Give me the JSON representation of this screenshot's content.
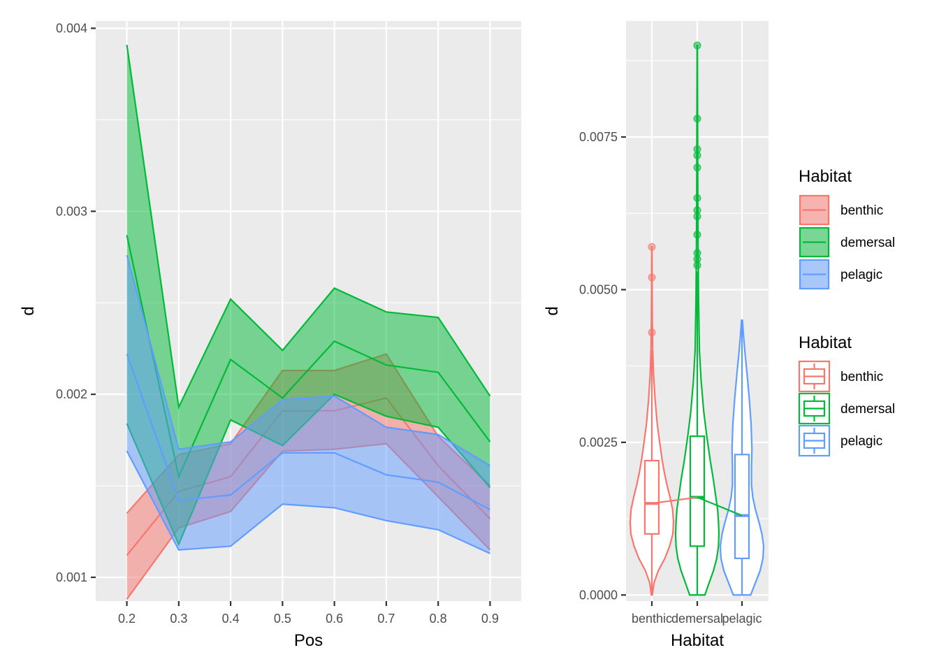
{
  "chart_data": [
    {
      "type": "area",
      "xlabel": "Pos",
      "ylabel": "d",
      "x": [
        0.2,
        0.3,
        0.4,
        0.5,
        0.6,
        0.7,
        0.8,
        0.9
      ],
      "x_ticks": [
        "0.2",
        "0.3",
        "0.4",
        "0.5",
        "0.6",
        "0.7",
        "0.8",
        "0.9"
      ],
      "xlim": [
        0.14,
        0.96
      ],
      "y_ticks": [
        0.001,
        0.002,
        0.003,
        0.004
      ],
      "y_tick_labels": [
        "0.001",
        "0.002",
        "0.003",
        "0.004"
      ],
      "ylim": [
        0.00087,
        0.00404
      ],
      "series": [
        {
          "name": "benthic",
          "color": "#F8766D",
          "lower": [
            0.00088,
            0.00127,
            0.00136,
            0.00169,
            0.0017,
            0.00173,
            0.00144,
            0.00115
          ],
          "mean": [
            0.00112,
            0.00147,
            0.00155,
            0.00191,
            0.00191,
            0.00198,
            0.00161,
            0.00132
          ],
          "upper": [
            0.00135,
            0.00167,
            0.00173,
            0.00213,
            0.00213,
            0.00222,
            0.00177,
            0.0015
          ]
        },
        {
          "name": "demersal",
          "color": "#00BA38",
          "lower": [
            0.00184,
            0.00118,
            0.00186,
            0.00172,
            0.002,
            0.00188,
            0.00182,
            0.00149
          ],
          "mean": [
            0.00287,
            0.00155,
            0.00219,
            0.00198,
            0.00229,
            0.00216,
            0.00212,
            0.00174
          ],
          "upper": [
            0.00391,
            0.00193,
            0.00252,
            0.00224,
            0.00258,
            0.00245,
            0.00242,
            0.00199
          ]
        },
        {
          "name": "pelagic",
          "color": "#619CFF",
          "lower": [
            0.00169,
            0.00115,
            0.00117,
            0.0014,
            0.00138,
            0.00131,
            0.00126,
            0.00113
          ],
          "mean": [
            0.00222,
            0.00142,
            0.00145,
            0.00168,
            0.00168,
            0.00156,
            0.00152,
            0.00137
          ],
          "upper": [
            0.00276,
            0.0017,
            0.00174,
            0.00197,
            0.00199,
            0.00182,
            0.00178,
            0.00161
          ]
        }
      ],
      "grid": true
    },
    {
      "type": "violin",
      "xlabel": "Habitat",
      "ylabel": "d",
      "categories": [
        "benthic",
        "demersal",
        "pelagic"
      ],
      "y_ticks": [
        0,
        0.0025,
        0.005,
        0.0075
      ],
      "y_tick_labels": [
        "0.0000",
        "0.0025",
        "0.0050",
        "0.0075"
      ],
      "ylim": [
        -0.0001,
        0.0094
      ],
      "boxes": [
        {
          "name": "benthic",
          "color": "#F8766D",
          "min": 0,
          "q1": 0.001,
          "median": 0.0015,
          "q3": 0.0022,
          "max": 0.004,
          "mean": 0.0015,
          "outliers": [
            0.0043,
            0.0052,
            0.0057
          ]
        },
        {
          "name": "demersal",
          "color": "#00BA38",
          "min": 0,
          "q1": 0.0008,
          "median": 0.0016,
          "q3": 0.0026,
          "max": 0.0053,
          "mean": 0.0016,
          "outliers": [
            0.0054,
            0.0055,
            0.0056,
            0.0059,
            0.0062,
            0.0063,
            0.0065,
            0.007,
            0.0072,
            0.0073,
            0.0078,
            0.009
          ]
        },
        {
          "name": "pelagic",
          "color": "#619CFF",
          "min": 0,
          "q1": 0.0006,
          "median": 0.0013,
          "q3": 0.0023,
          "max": 0.0045,
          "mean": 0.0013,
          "outliers": []
        }
      ],
      "violins": [
        {
          "name": "benthic",
          "profile": [
            [
              0,
              0.02
            ],
            [
              0.0002,
              0.1
            ],
            [
              0.0004,
              0.3
            ],
            [
              0.0006,
              0.6
            ],
            [
              0.0008,
              0.82
            ],
            [
              0.001,
              0.97
            ],
            [
              0.0012,
              1.0
            ],
            [
              0.0014,
              0.96
            ],
            [
              0.0016,
              0.84
            ],
            [
              0.0018,
              0.7
            ],
            [
              0.002,
              0.58
            ],
            [
              0.0022,
              0.48
            ],
            [
              0.0025,
              0.36
            ],
            [
              0.0028,
              0.25
            ],
            [
              0.0032,
              0.15
            ],
            [
              0.0036,
              0.08
            ],
            [
              0.004,
              0.04
            ],
            [
              0.0045,
              0.02
            ],
            [
              0.005,
              0.012
            ],
            [
              0.0057,
              0.006
            ]
          ]
        },
        {
          "name": "demersal",
          "profile": [
            [
              0,
              0.35
            ],
            [
              0.0002,
              0.55
            ],
            [
              0.0004,
              0.75
            ],
            [
              0.0006,
              0.9
            ],
            [
              0.0008,
              0.98
            ],
            [
              0.001,
              1.0
            ],
            [
              0.0012,
              0.98
            ],
            [
              0.0014,
              0.94
            ],
            [
              0.0016,
              0.86
            ],
            [
              0.0019,
              0.74
            ],
            [
              0.0022,
              0.6
            ],
            [
              0.0026,
              0.44
            ],
            [
              0.003,
              0.3
            ],
            [
              0.0035,
              0.18
            ],
            [
              0.004,
              0.1
            ],
            [
              0.0048,
              0.06
            ],
            [
              0.0056,
              0.04
            ],
            [
              0.0065,
              0.025
            ],
            [
              0.0078,
              0.015
            ],
            [
              0.009,
              0.006
            ]
          ]
        },
        {
          "name": "pelagic",
          "profile": [
            [
              0,
              0.4
            ],
            [
              0.0002,
              0.62
            ],
            [
              0.0004,
              0.84
            ],
            [
              0.0006,
              0.97
            ],
            [
              0.0008,
              1.0
            ],
            [
              0.001,
              0.92
            ],
            [
              0.0012,
              0.78
            ],
            [
              0.0014,
              0.62
            ],
            [
              0.0016,
              0.5
            ],
            [
              0.0018,
              0.44
            ],
            [
              0.0021,
              0.44
            ],
            [
              0.0024,
              0.46
            ],
            [
              0.0028,
              0.42
            ],
            [
              0.0032,
              0.34
            ],
            [
              0.0036,
              0.24
            ],
            [
              0.004,
              0.13
            ],
            [
              0.0043,
              0.06
            ],
            [
              0.0045,
              0.02
            ]
          ]
        }
      ],
      "mean_line": true,
      "grid": true
    }
  ],
  "legends": [
    {
      "title": "Habitat",
      "kind": "fill",
      "items": [
        "benthic",
        "demersal",
        "pelagic"
      ],
      "colors": [
        "#F8766D",
        "#00BA38",
        "#619CFF"
      ]
    },
    {
      "title": "Habitat",
      "kind": "box",
      "items": [
        "benthic",
        "demersal",
        "pelagic"
      ],
      "colors": [
        "#F8766D",
        "#00BA38",
        "#619CFF"
      ]
    }
  ]
}
